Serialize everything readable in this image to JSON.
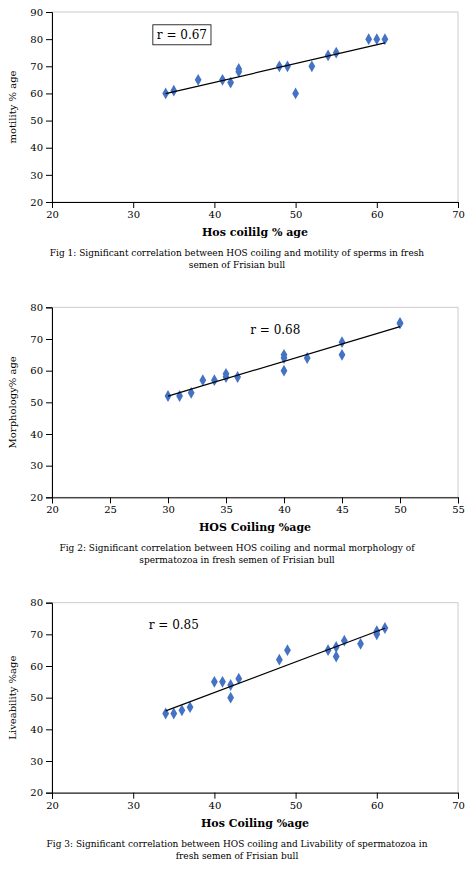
{
  "chart_data": [
    {
      "type": "scatter",
      "xlabel": "Hos coililg % age",
      "ylabel": "motility % age",
      "annotations": [
        "r = 0.67"
      ],
      "caption": "Fig 1: Significant correlation between HOS coiling and motility of sperms in fresh\nsemen of Frisian bull",
      "xlim": [
        20,
        70
      ],
      "ylim": [
        20,
        90
      ],
      "xticks": [
        20,
        30,
        40,
        50,
        60,
        70
      ],
      "yticks": [
        20,
        30,
        40,
        50,
        60,
        70,
        80,
        90
      ],
      "grid": false,
      "series": [
        {
          "type": "scatter",
          "color": "#4472C4",
          "marker": "diamond",
          "x": [
            34,
            35,
            38,
            41,
            42,
            43,
            43,
            48,
            49,
            50,
            52,
            54,
            55,
            59,
            60,
            61
          ],
          "values": [
            60,
            61,
            65,
            65,
            64,
            68,
            69,
            70,
            70,
            60,
            70,
            74,
            75,
            80,
            80,
            80
          ]
        },
        {
          "type": "line",
          "color": "#000000",
          "line_style": "solid",
          "x": [
            34,
            61
          ],
          "values": [
            59.9,
            78.62
          ]
        }
      ]
    },
    {
      "type": "scatter",
      "xlabel": "HOS Coiling %age",
      "ylabel": "Morphology% age",
      "annotations": [
        "r = 0.68"
      ],
      "caption": "Fig 2: Significant correlation between HOS coiling and normal morphology of\nspermatozoa in fresh semen of Frisian bull",
      "xlim": [
        20,
        55
      ],
      "ylim": [
        20,
        80
      ],
      "xticks": [
        20,
        25,
        30,
        35,
        40,
        45,
        50,
        55
      ],
      "yticks": [
        20,
        30,
        40,
        50,
        60,
        70,
        80
      ],
      "grid": false,
      "series": [
        {
          "type": "scatter",
          "color": "#4472C4",
          "marker": "diamond",
          "x": [
            30,
            31,
            32,
            33,
            34,
            35,
            35,
            36,
            40,
            40,
            40,
            42,
            45,
            45,
            50,
            50
          ],
          "values": [
            52,
            52,
            53,
            57,
            57,
            58,
            59,
            58,
            64,
            65,
            60,
            64,
            65,
            69,
            75,
            75
          ]
        },
        {
          "type": "line",
          "color": "#000000",
          "line_style": "solid",
          "x": [
            30,
            50
          ],
          "values": [
            51.98,
            73.91
          ]
        }
      ]
    },
    {
      "type": "scatter",
      "xlabel": "Hos Coiling %age",
      "ylabel": "Liveability %age",
      "annotations": [
        "r = 0.85"
      ],
      "caption": "Fig 3: Significant correlation between HOS coiling and Livability of spermatozoa in\nfresh semen of Frisian bull",
      "xlim": [
        20,
        70
      ],
      "ylim": [
        20,
        80
      ],
      "xticks": [
        20,
        30,
        40,
        50,
        60,
        70
      ],
      "yticks": [
        20,
        30,
        40,
        50,
        60,
        70,
        80
      ],
      "grid": false,
      "series": [
        {
          "type": "scatter",
          "color": "#4472C4",
          "marker": "diamond",
          "x": [
            34,
            35,
            36,
            37,
            40,
            41,
            42,
            42,
            43,
            48,
            49,
            54,
            55,
            55,
            56,
            58,
            60,
            60,
            61
          ],
          "values": [
            45,
            45,
            46,
            47,
            55,
            55,
            54,
            50,
            56,
            62,
            65,
            65,
            63,
            66,
            68,
            67,
            70,
            71,
            72
          ]
        },
        {
          "type": "line",
          "color": "#000000",
          "line_style": "solid",
          "x": [
            34,
            61
          ],
          "values": [
            45.82,
            71.93
          ]
        }
      ]
    }
  ]
}
